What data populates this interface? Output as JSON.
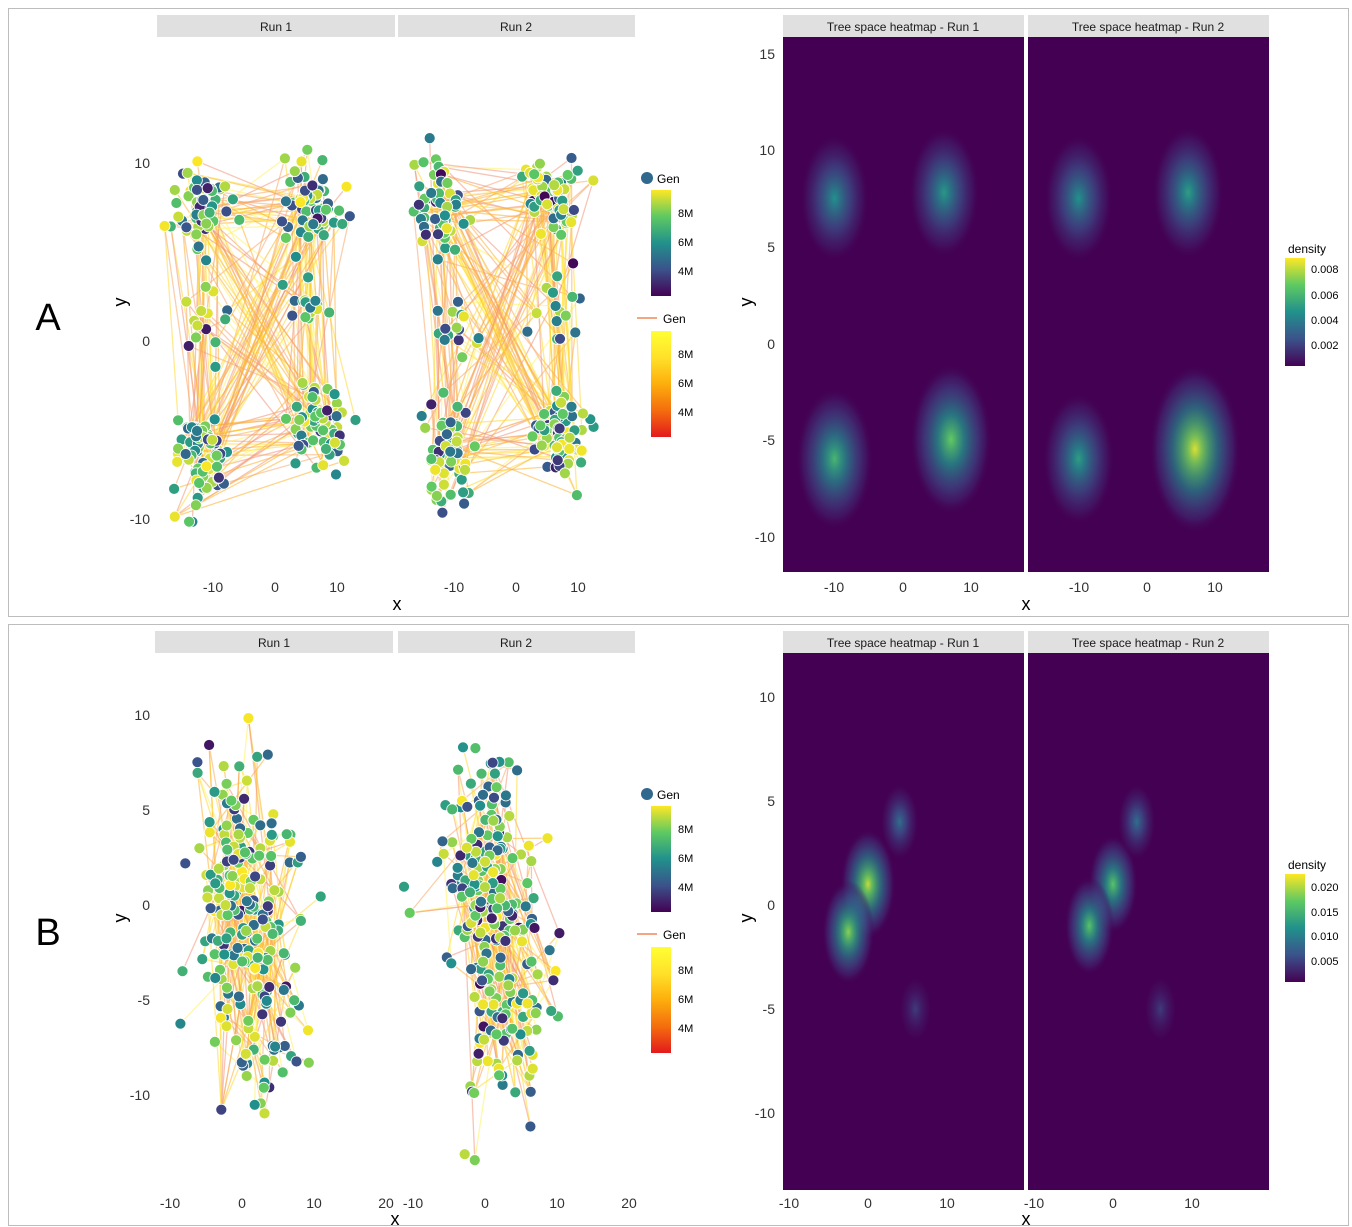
{
  "panels": [
    {
      "letter": "A",
      "scatter": {
        "strips": [
          "Run 1",
          "Run 2"
        ],
        "xlabel": "x",
        "ylabel": "y",
        "x_ticks": [
          "-10",
          "0",
          "10"
        ],
        "y_ticks": [
          "10",
          "0",
          "-10"
        ],
        "legend_points": {
          "title": "Gen",
          "labels": [
            "8M",
            "6M",
            "4M"
          ]
        },
        "legend_lines": {
          "title": "Gen",
          "labels": [
            "8M",
            "6M",
            "4M"
          ]
        }
      },
      "heatmap": {
        "strips": [
          "Tree space heatmap - Run 1",
          "Tree space heatmap - Run 2"
        ],
        "xlabel": "x",
        "ylabel": "y",
        "x_ticks": [
          "-10",
          "0",
          "10"
        ],
        "y_ticks": [
          "15",
          "10",
          "5",
          "0",
          "-5",
          "-10"
        ],
        "legend": {
          "title": "density",
          "labels": [
            "0.008",
            "0.006",
            "0.004",
            "0.002"
          ]
        }
      }
    },
    {
      "letter": "B",
      "scatter": {
        "strips": [
          "Run 1",
          "Run 2"
        ],
        "xlabel": "x",
        "ylabel": "y",
        "x_ticks_run1": [
          "-10",
          "0",
          "10",
          "20"
        ],
        "x_ticks_run2": [
          "-10",
          "0",
          "10",
          "20"
        ],
        "y_ticks": [
          "10",
          "5",
          "0",
          "-5",
          "-10"
        ],
        "legend_points": {
          "title": "Gen",
          "labels": [
            "8M",
            "6M",
            "4M"
          ]
        },
        "legend_lines": {
          "title": "Gen",
          "labels": [
            "8M",
            "6M",
            "4M"
          ]
        }
      },
      "heatmap": {
        "strips": [
          "Tree space heatmap - Run 1",
          "Tree space heatmap - Run 2"
        ],
        "xlabel": "x",
        "ylabel": "y",
        "x_ticks_run1": [
          "-10",
          "0",
          "10"
        ],
        "x_ticks_run2": [
          "-10",
          "0",
          "10"
        ],
        "y_ticks": [
          "10",
          "5",
          "0",
          "-5",
          "-10"
        ],
        "legend": {
          "title": "density",
          "labels": [
            "0.020",
            "0.015",
            "0.010",
            "0.005"
          ]
        }
      }
    }
  ],
  "chart_data": [
    {
      "type": "scatter",
      "panel": "A",
      "facets": [
        "Run 1",
        "Run 2"
      ],
      "xlabel": "x",
      "ylabel": "y",
      "xlim": [
        -18,
        20
      ],
      "ylim": [
        -12,
        16
      ],
      "color_variable": "Gen",
      "clusters": {
        "Run 1": [
          {
            "x": -12,
            "y": 7.5,
            "n": 60
          },
          {
            "x": 6,
            "y": 8,
            "n": 60
          },
          {
            "x": -11,
            "y": 1,
            "n": 15
          },
          {
            "x": 6,
            "y": 1.5,
            "n": 15
          },
          {
            "x": -12,
            "y": -6.5,
            "n": 70
          },
          {
            "x": 7,
            "y": -5,
            "n": 70
          }
        ],
        "Run 2": [
          {
            "x": -12,
            "y": 7.5,
            "n": 55
          },
          {
            "x": 6,
            "y": 8,
            "n": 65
          },
          {
            "x": -10,
            "y": 0.5,
            "n": 15
          },
          {
            "x": 6,
            "y": 1.5,
            "n": 15
          },
          {
            "x": -11,
            "y": -6.5,
            "n": 65
          },
          {
            "x": 7,
            "y": -5.5,
            "n": 70
          }
        ]
      },
      "legend": [
        {
          "name": "Gen (points)",
          "colors": [
            "#440154",
            "#3b528b",
            "#21918c",
            "#5ec962",
            "#fde725"
          ],
          "ticks": [
            "8M",
            "6M",
            "4M"
          ]
        },
        {
          "name": "Gen (lines)",
          "colors": [
            "#e31a1c",
            "#f46d0e",
            "#fdae0c",
            "#ffe12a",
            "#ffff33"
          ],
          "ticks": [
            "8M",
            "6M",
            "4M"
          ]
        }
      ]
    },
    {
      "type": "heatmap",
      "panel": "A",
      "facets": [
        "Tree space heatmap - Run 1",
        "Tree space heatmap - Run 2"
      ],
      "xlabel": "x",
      "ylabel": "y",
      "xlim": [
        -18,
        18
      ],
      "ylim": [
        -12,
        16
      ],
      "density_peaks": {
        "Tree space heatmap - Run 1": [
          {
            "x": -10,
            "y": 7.5,
            "density": 0.0045
          },
          {
            "x": 6,
            "y": 7.8,
            "density": 0.0048
          },
          {
            "x": -10,
            "y": -6,
            "density": 0.006
          },
          {
            "x": 7,
            "y": -5,
            "density": 0.0068
          }
        ],
        "Tree space heatmap - Run 2": [
          {
            "x": -10,
            "y": 7.5,
            "density": 0.0045
          },
          {
            "x": 6,
            "y": 7.8,
            "density": 0.005
          },
          {
            "x": -10,
            "y": -6,
            "density": 0.005
          },
          {
            "x": 7,
            "y": -5.5,
            "density": 0.0085
          }
        ]
      },
      "legend": {
        "title": "density",
        "ticks": [
          0.008,
          0.006,
          0.004,
          0.002
        ],
        "colors": [
          "#fde725",
          "#5ec962",
          "#21918c",
          "#3b528b",
          "#440154"
        ]
      }
    },
    {
      "type": "scatter",
      "panel": "B",
      "facets": [
        "Run 1",
        "Run 2"
      ],
      "xlabel": "x",
      "ylabel": "y",
      "xlim": [
        -14,
        21
      ],
      "ylim": [
        -14,
        12
      ],
      "color_variable": "Gen",
      "clusters": {
        "Run 1": [
          {
            "x": 0,
            "y": 1,
            "n": 170
          },
          {
            "x": 3,
            "y": -6,
            "n": 60
          }
        ],
        "Run 2": [
          {
            "x": 0,
            "y": 1,
            "n": 170
          },
          {
            "x": 3,
            "y": -6,
            "n": 70
          }
        ]
      },
      "legend": [
        {
          "name": "Gen (points)",
          "colors": [
            "#440154",
            "#3b528b",
            "#21918c",
            "#5ec962",
            "#fde725"
          ],
          "ticks": [
            "8M",
            "6M",
            "4M"
          ]
        },
        {
          "name": "Gen (lines)",
          "colors": [
            "#e31a1c",
            "#f46d0e",
            "#fdae0c",
            "#ffe12a",
            "#ffff33"
          ],
          "ticks": [
            "8M",
            "6M",
            "4M"
          ]
        }
      ]
    },
    {
      "type": "heatmap",
      "panel": "B",
      "facets": [
        "Tree space heatmap - Run 1",
        "Tree space heatmap - Run 2"
      ],
      "xlabel": "x",
      "ylabel": "y",
      "xlim": [
        -11,
        19
      ],
      "ylim": [
        -14,
        12
      ],
      "density_peaks": {
        "Tree space heatmap - Run 1": [
          {
            "x": 0,
            "y": 1,
            "density": 0.02
          },
          {
            "x": -2.5,
            "y": -1.3,
            "density": 0.018
          },
          {
            "x": 4,
            "y": 4,
            "density": 0.008
          },
          {
            "x": 6,
            "y": -5,
            "density": 0.004
          }
        ],
        "Tree space heatmap - Run 2": [
          {
            "x": 0,
            "y": 1,
            "density": 0.016
          },
          {
            "x": -3,
            "y": -1,
            "density": 0.016
          },
          {
            "x": 3,
            "y": 4,
            "density": 0.008
          },
          {
            "x": 6,
            "y": -5,
            "density": 0.004
          }
        ]
      },
      "legend": {
        "title": "density",
        "ticks": [
          0.02,
          0.015,
          0.01,
          0.005
        ],
        "colors": [
          "#fde725",
          "#5ec962",
          "#21918c",
          "#3b528b",
          "#440154"
        ]
      }
    }
  ]
}
